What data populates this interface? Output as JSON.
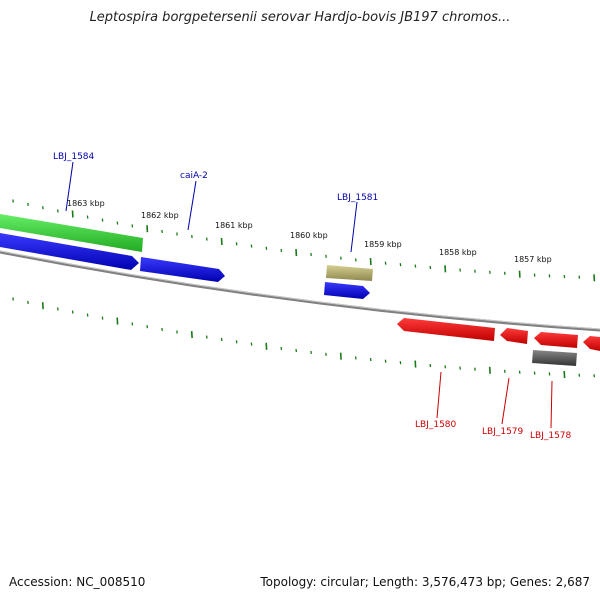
{
  "title": "Leptospira borgpetersenii serovar Hardjo-bovis JB197 chromos...",
  "footer": {
    "accession": "Accession: NC_008510",
    "summary": "Topology: circular; Length: 3,576,473 bp; Genes: 2,687"
  },
  "colors": {
    "forward_gene": "#0a0adc",
    "reverse_gene": "#ee1111",
    "rna_green": "#33cc33",
    "misc_olive": "#b5ad6b",
    "pseudo_gray": "#555555",
    "backbone": "#808080",
    "tick": "#1a7a1a",
    "forward_label": "#0000aa",
    "reverse_label": "#cc0000"
  },
  "scale_labels": [
    {
      "text": "1863 kbp",
      "kbp": 1863
    },
    {
      "text": "1862 kbp",
      "kbp": 1862
    },
    {
      "text": "1861 kbp",
      "kbp": 1861
    },
    {
      "text": "1860 kbp",
      "kbp": 1860
    },
    {
      "text": "1859 kbp",
      "kbp": 1859
    },
    {
      "text": "1858 kbp",
      "kbp": 1858
    },
    {
      "text": "1857 kbp",
      "kbp": 1857
    }
  ],
  "gene_labels": [
    {
      "text": "LBJ_1584",
      "strand": "forward"
    },
    {
      "text": "caiA-2",
      "strand": "forward"
    },
    {
      "text": "LBJ_1581",
      "strand": "forward"
    },
    {
      "text": "LBJ_1580",
      "strand": "reverse"
    },
    {
      "text": "LBJ_1579",
      "strand": "reverse"
    },
    {
      "text": "LBJ_1578",
      "strand": "reverse"
    }
  ]
}
